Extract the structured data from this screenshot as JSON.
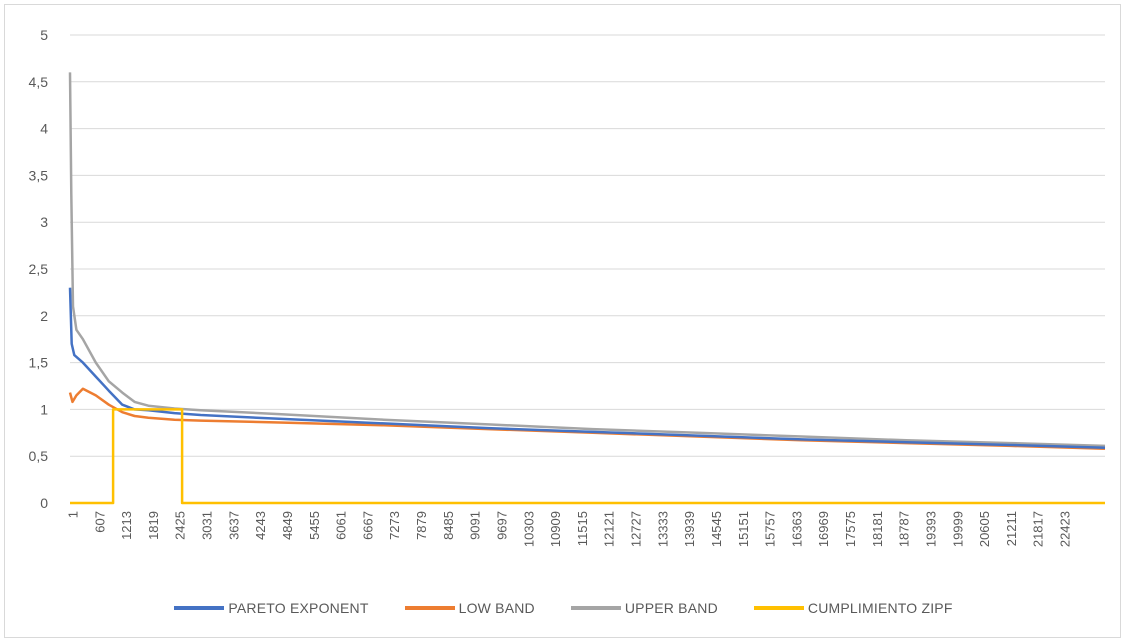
{
  "chart_data": {
    "type": "line",
    "title": "",
    "xlabel": "",
    "ylabel": "",
    "ylim": [
      0,
      5
    ],
    "y_ticks": [
      "0",
      "0,5",
      "1",
      "1,5",
      "2",
      "2,5",
      "3",
      "3,5",
      "4",
      "4,5",
      "5"
    ],
    "x_range": [
      1,
      24000
    ],
    "x_tick_labels": [
      "1",
      "607",
      "1213",
      "1819",
      "2425",
      "3031",
      "3637",
      "4243",
      "4849",
      "5455",
      "6061",
      "6667",
      "7273",
      "7879",
      "8485",
      "9091",
      "9697",
      "10303",
      "10909",
      "11515",
      "12121",
      "12727",
      "13333",
      "13939",
      "14545",
      "15151",
      "15757",
      "16363",
      "16969",
      "17575",
      "18181",
      "18787",
      "19393",
      "19999",
      "20605",
      "21211",
      "21817",
      "22423"
    ],
    "grid": true,
    "legend_position": "bottom",
    "series": [
      {
        "name": "PARETO EXPONENT",
        "color": "#4472c4",
        "points": [
          [
            1,
            2.3
          ],
          [
            40,
            1.7
          ],
          [
            100,
            1.58
          ],
          [
            300,
            1.5
          ],
          [
            600,
            1.35
          ],
          [
            900,
            1.2
          ],
          [
            1213,
            1.05
          ],
          [
            1500,
            1.0
          ],
          [
            1819,
            0.99
          ],
          [
            2425,
            0.96
          ],
          [
            3031,
            0.94
          ],
          [
            4849,
            0.9
          ],
          [
            7273,
            0.85
          ],
          [
            9697,
            0.8
          ],
          [
            12121,
            0.76
          ],
          [
            14545,
            0.72
          ],
          [
            16969,
            0.68
          ],
          [
            19393,
            0.65
          ],
          [
            21817,
            0.62
          ],
          [
            24000,
            0.59
          ]
        ]
      },
      {
        "name": "LOW BAND",
        "color": "#ed7d31",
        "points": [
          [
            1,
            1.18
          ],
          [
            60,
            1.08
          ],
          [
            150,
            1.15
          ],
          [
            300,
            1.22
          ],
          [
            600,
            1.15
          ],
          [
            900,
            1.05
          ],
          [
            1213,
            0.97
          ],
          [
            1500,
            0.93
          ],
          [
            1819,
            0.91
          ],
          [
            2425,
            0.89
          ],
          [
            3031,
            0.88
          ],
          [
            4849,
            0.86
          ],
          [
            7273,
            0.83
          ],
          [
            9697,
            0.79
          ],
          [
            12121,
            0.75
          ],
          [
            14545,
            0.71
          ],
          [
            16969,
            0.67
          ],
          [
            19393,
            0.64
          ],
          [
            21817,
            0.61
          ],
          [
            24000,
            0.58
          ]
        ]
      },
      {
        "name": "UPPER BAND",
        "color": "#a5a5a5",
        "points": [
          [
            1,
            4.6
          ],
          [
            30,
            3.3
          ],
          [
            70,
            2.1
          ],
          [
            150,
            1.85
          ],
          [
            300,
            1.75
          ],
          [
            600,
            1.5
          ],
          [
            900,
            1.3
          ],
          [
            1213,
            1.18
          ],
          [
            1500,
            1.08
          ],
          [
            1819,
            1.04
          ],
          [
            2425,
            1.01
          ],
          [
            3031,
            0.99
          ],
          [
            4849,
            0.95
          ],
          [
            7273,
            0.89
          ],
          [
            9697,
            0.84
          ],
          [
            12121,
            0.79
          ],
          [
            14545,
            0.75
          ],
          [
            16969,
            0.71
          ],
          [
            19393,
            0.67
          ],
          [
            21817,
            0.64
          ],
          [
            24000,
            0.61
          ]
        ]
      },
      {
        "name": "CUMPLIMIENTO ZIPF",
        "color": "#ffc000",
        "points": [
          [
            1,
            0
          ],
          [
            1000,
            0
          ],
          [
            1000,
            1
          ],
          [
            2600,
            1
          ],
          [
            2600,
            0
          ],
          [
            24000,
            0
          ]
        ]
      }
    ]
  }
}
